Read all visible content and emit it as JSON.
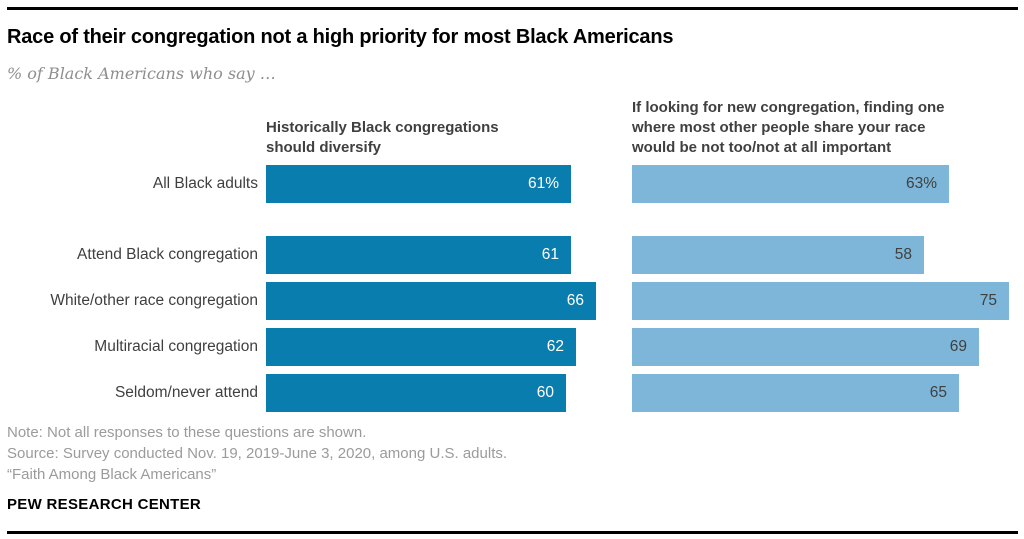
{
  "header": {
    "title": "Race of their congregation not a high priority for most Black Americans",
    "subtitle": "% of Black Americans who say …"
  },
  "panels": {
    "left_header": "Historically Black congregations\nshould diversify",
    "right_header": "If looking for new congregation, finding one\nwhere most other people share your race\nwould be not too/not at all important"
  },
  "chart_data": {
    "type": "bar",
    "orientation": "horizontal",
    "unit": "%",
    "xlim": [
      0,
      100
    ],
    "grid": false,
    "legend_position": "column-headers",
    "categories": [
      "All Black adults",
      "Attend Black congregation",
      "White/other race congregation",
      "Multiracial congregation",
      "Seldom/never attend"
    ],
    "series": [
      {
        "name": "Historically Black congregations should diversify",
        "values": [
          61,
          61,
          66,
          62,
          60
        ],
        "labels": [
          "61%",
          "61",
          "66",
          "62",
          "60"
        ],
        "color": "#0a7daf",
        "label_color": "#ffffff"
      },
      {
        "name": "If looking for new congregation, finding one where most other people share your race would be not too/not at all important",
        "values": [
          63,
          58,
          75,
          69,
          65
        ],
        "labels": [
          "63%",
          "58",
          "75",
          "69",
          "65"
        ],
        "color": "#7db6d8",
        "label_color": "#404040"
      }
    ]
  },
  "colors": {
    "dark_blue": "#0a7daf",
    "light_blue": "#7db6d8",
    "title": "#000000",
    "subtitle_gray": "#8e8e8e",
    "header_gray": "#404040",
    "note_gray": "#9b9b9b"
  },
  "footer": {
    "note": "Note: Not all responses to these questions are shown.",
    "source": "Source: Survey conducted Nov. 19, 2019-June 3, 2020, among U.S. adults.",
    "report": "“Faith Among Black Americans”",
    "brand": "PEW RESEARCH CENTER"
  }
}
